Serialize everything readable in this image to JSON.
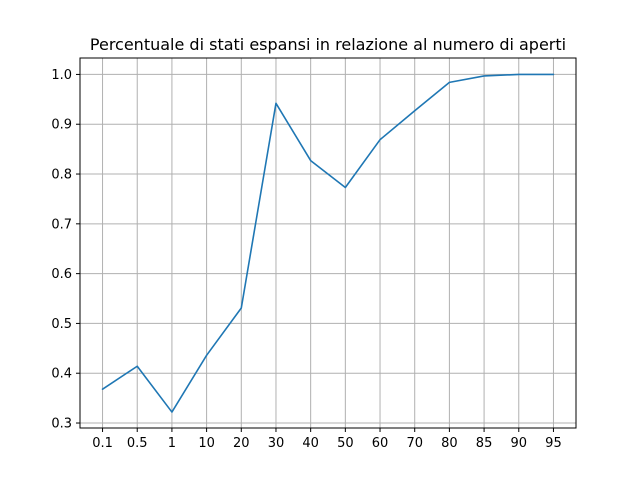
{
  "chart_data": {
    "type": "line",
    "title": "Percentuale di stati espansi in relazione al numero di aperti",
    "xlabel": "",
    "ylabel": "",
    "categories": [
      "0.1",
      "0.5",
      "1",
      "10",
      "20",
      "30",
      "40",
      "50",
      "60",
      "70",
      "80",
      "85",
      "90",
      "95"
    ],
    "series": [
      {
        "values": [
          0.368,
          0.414,
          0.322,
          0.436,
          0.531,
          0.942,
          0.827,
          0.773,
          0.869,
          0.927,
          0.984,
          0.997,
          1.0,
          1.0
        ],
        "color": "#1f77b4"
      }
    ],
    "ylim": [
      0.29,
      1.033
    ],
    "yticks": [
      0.3,
      0.4,
      0.5,
      0.6,
      0.7,
      0.8,
      0.9,
      1.0
    ],
    "ytick_labels": [
      "0.3",
      "0.4",
      "0.5",
      "0.6",
      "0.7",
      "0.8",
      "0.9",
      "1.0"
    ],
    "grid": true
  }
}
